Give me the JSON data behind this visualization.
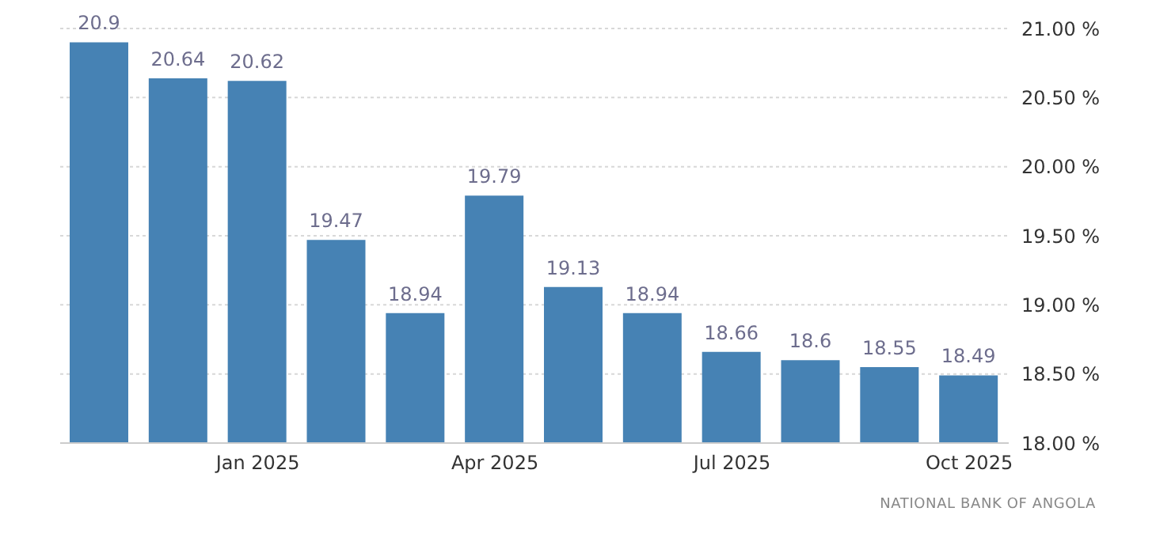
{
  "chart_data": {
    "type": "bar",
    "categories": [
      null,
      null,
      "Jan 2025",
      null,
      null,
      "Apr 2025",
      null,
      null,
      "Jul 2025",
      null,
      null,
      "Oct 2025"
    ],
    "values": [
      20.9,
      20.64,
      20.62,
      19.47,
      18.94,
      19.79,
      19.13,
      18.94,
      18.66,
      18.6,
      18.55,
      18.49
    ],
    "color": "#4682b4",
    "ylim": [
      18,
      21
    ],
    "yticks": [
      {
        "value": 18,
        "label": "18.00 %"
      },
      {
        "value": 18.5,
        "label": "18.50 %"
      },
      {
        "value": 19,
        "label": "19.00 %"
      },
      {
        "value": 19.5,
        "label": "19.50 %"
      },
      {
        "value": 20,
        "label": "20.00 %"
      },
      {
        "value": 20.5,
        "label": "20.50 %"
      },
      {
        "value": 21,
        "label": "21.00 %"
      }
    ],
    "grid": "y",
    "data_labels": true,
    "annotations": [
      "NATIONAL BANK OF ANGOLA"
    ]
  }
}
